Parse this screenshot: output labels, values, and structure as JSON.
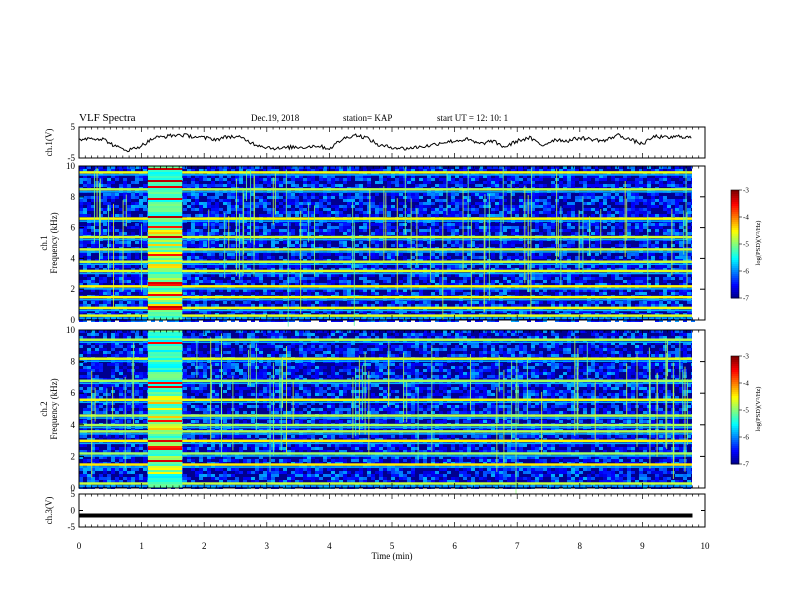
{
  "header": {
    "title": "VLF Spectra",
    "date": "Dec.19, 2018",
    "station": "station= KAP",
    "start": "start  UT =    12: 10: 1"
  },
  "chart_data": [
    {
      "type": "line",
      "name": "ch1-voltage",
      "ylabel": "ch.1(V)",
      "ylim": [
        -5,
        5
      ],
      "yticks": [
        "5",
        "-5"
      ],
      "xlim": [
        0,
        10
      ],
      "x": [
        0,
        0.2,
        0.4,
        0.6,
        0.8,
        1.0,
        1.2,
        1.4,
        1.6,
        1.8,
        2.0,
        2.2,
        2.4,
        2.6,
        2.8,
        3.0,
        3.2,
        3.4,
        3.6,
        3.8,
        4.0,
        4.2,
        4.4,
        4.6,
        4.8,
        5.0,
        5.2,
        5.4,
        5.6,
        5.8,
        6.0,
        6.2,
        6.4,
        6.6,
        6.8,
        7.0,
        7.2,
        7.4,
        7.6,
        7.8,
        8.0,
        8.2,
        8.4,
        8.6,
        8.8,
        9.0,
        9.2,
        9.4,
        9.6,
        9.8
      ],
      "y": [
        1.0,
        1.5,
        1.0,
        -1.5,
        -2.5,
        -1.0,
        1.5,
        2.0,
        2.5,
        2.0,
        1.5,
        1.0,
        2.0,
        1.5,
        -0.5,
        -1.5,
        -2.0,
        -1.5,
        -1.5,
        -1.0,
        -2.0,
        1.0,
        2.5,
        1.5,
        -1.0,
        -1.5,
        -2.0,
        -1.5,
        -1.0,
        0.0,
        0.5,
        1.0,
        -0.5,
        0.5,
        -1.5,
        0.5,
        1.5,
        -1.0,
        1.0,
        0.5,
        1.5,
        1.0,
        0.5,
        2.5,
        1.0,
        -0.5,
        2.0,
        1.5,
        2.0,
        1.5
      ]
    },
    {
      "type": "heatmap",
      "name": "ch1-spectrogram",
      "ylabel": "ch.1\nFrequency (kHz)",
      "ylim": [
        0,
        10
      ],
      "yticks": [
        "0",
        "2",
        "4",
        "6",
        "8",
        "10"
      ],
      "xlim": [
        0,
        10
      ],
      "colorbar": {
        "label": "log(PSD)(V²/Hz)",
        "range": [
          -7,
          -3
        ],
        "ticks": [
          "-3",
          "-4",
          "-5",
          "-6",
          "-7"
        ]
      },
      "bands_khz": [
        0.3,
        0.8,
        1.5,
        2.2,
        3.2,
        3.8,
        4.6,
        5.4,
        6.6,
        8.5,
        9.6
      ],
      "burst_min": [
        1.1,
        1.65
      ]
    },
    {
      "type": "heatmap",
      "name": "ch2-spectrogram",
      "ylabel": "ch.2\nFrequency (kHz)",
      "ylim": [
        0,
        10
      ],
      "yticks": [
        "0",
        "2",
        "4",
        "6",
        "8",
        "10"
      ],
      "xlim": [
        0,
        10
      ],
      "colorbar": {
        "label": "log(PSD)(V²/Hz)",
        "range": [
          -7,
          -3
        ],
        "ticks": [
          "-3",
          "-4",
          "-5",
          "-6",
          "-7"
        ]
      },
      "bands_khz": [
        0.3,
        1.5,
        2.2,
        3.0,
        3.6,
        4.0,
        4.6,
        5.6,
        6.8,
        8.2,
        9.4
      ],
      "burst_min": [
        1.1,
        1.65
      ]
    },
    {
      "type": "line",
      "name": "ch3-voltage",
      "ylabel": "ch.3(V)",
      "ylim": [
        -5,
        5
      ],
      "yticks": [
        "5",
        "0",
        "-5"
      ],
      "xlim": [
        0,
        10
      ],
      "x": [
        0,
        9.8
      ],
      "y": [
        -1.5,
        -1.5
      ],
      "xlabel": "Time (min)",
      "xticks": [
        "0",
        "1",
        "2",
        "3",
        "4",
        "5",
        "6",
        "7",
        "8",
        "9",
        "10"
      ]
    }
  ]
}
